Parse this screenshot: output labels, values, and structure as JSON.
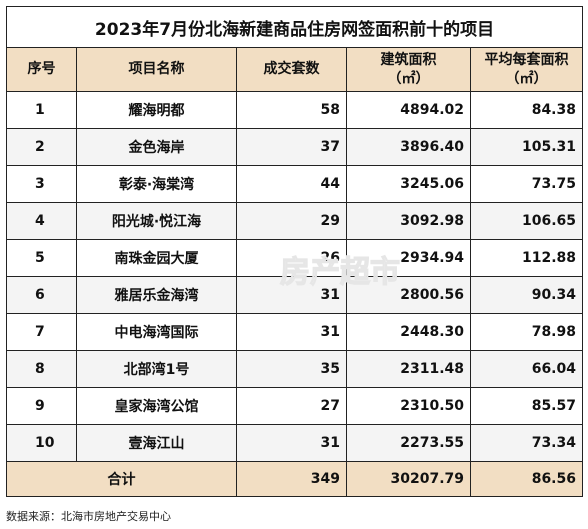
{
  "title": "2023年7月份北海新建商品住房网签面积前十的项目",
  "headers": {
    "rank": "序号",
    "name": "项目名称",
    "units": "成交套数",
    "area_line1": "建筑面积",
    "area_line2": "（㎡）",
    "avg_line1": "平均每套面积",
    "avg_line2": "（㎡）"
  },
  "rows": [
    {
      "rank": "1",
      "name": "耀海明都",
      "units": "58",
      "area": "4894.02",
      "avg": "84.38"
    },
    {
      "rank": "2",
      "name": "金色海岸",
      "units": "37",
      "area": "3896.40",
      "avg": "105.31"
    },
    {
      "rank": "3",
      "name": "彰泰·海棠湾",
      "units": "44",
      "area": "3245.06",
      "avg": "73.75"
    },
    {
      "rank": "4",
      "name": "阳光城·悦江海",
      "units": "29",
      "area": "3092.98",
      "avg": "106.65"
    },
    {
      "rank": "5",
      "name": "南珠金园大厦",
      "units": "26",
      "area": "2934.94",
      "avg": "112.88"
    },
    {
      "rank": "6",
      "name": "雅居乐金海湾",
      "units": "31",
      "area": "2800.56",
      "avg": "90.34"
    },
    {
      "rank": "7",
      "name": "中电海湾国际",
      "units": "31",
      "area": "2448.30",
      "avg": "78.98"
    },
    {
      "rank": "8",
      "name": "北部湾1号",
      "units": "35",
      "area": "2311.48",
      "avg": "66.04"
    },
    {
      "rank": "9",
      "name": "皇家海湾公馆",
      "units": "27",
      "area": "2310.50",
      "avg": "85.57"
    },
    {
      "rank": "10",
      "name": "壹海江山",
      "units": "31",
      "area": "2273.55",
      "avg": "73.34"
    }
  ],
  "total": {
    "label": "合计",
    "units": "349",
    "area": "30207.79",
    "avg": "86.56"
  },
  "source": "数据来源：北海市房地产交易中心",
  "watermark_text": "房产超市",
  "colors": {
    "header_bg": "#f2dec3",
    "stripe": "#f4f4f4"
  }
}
